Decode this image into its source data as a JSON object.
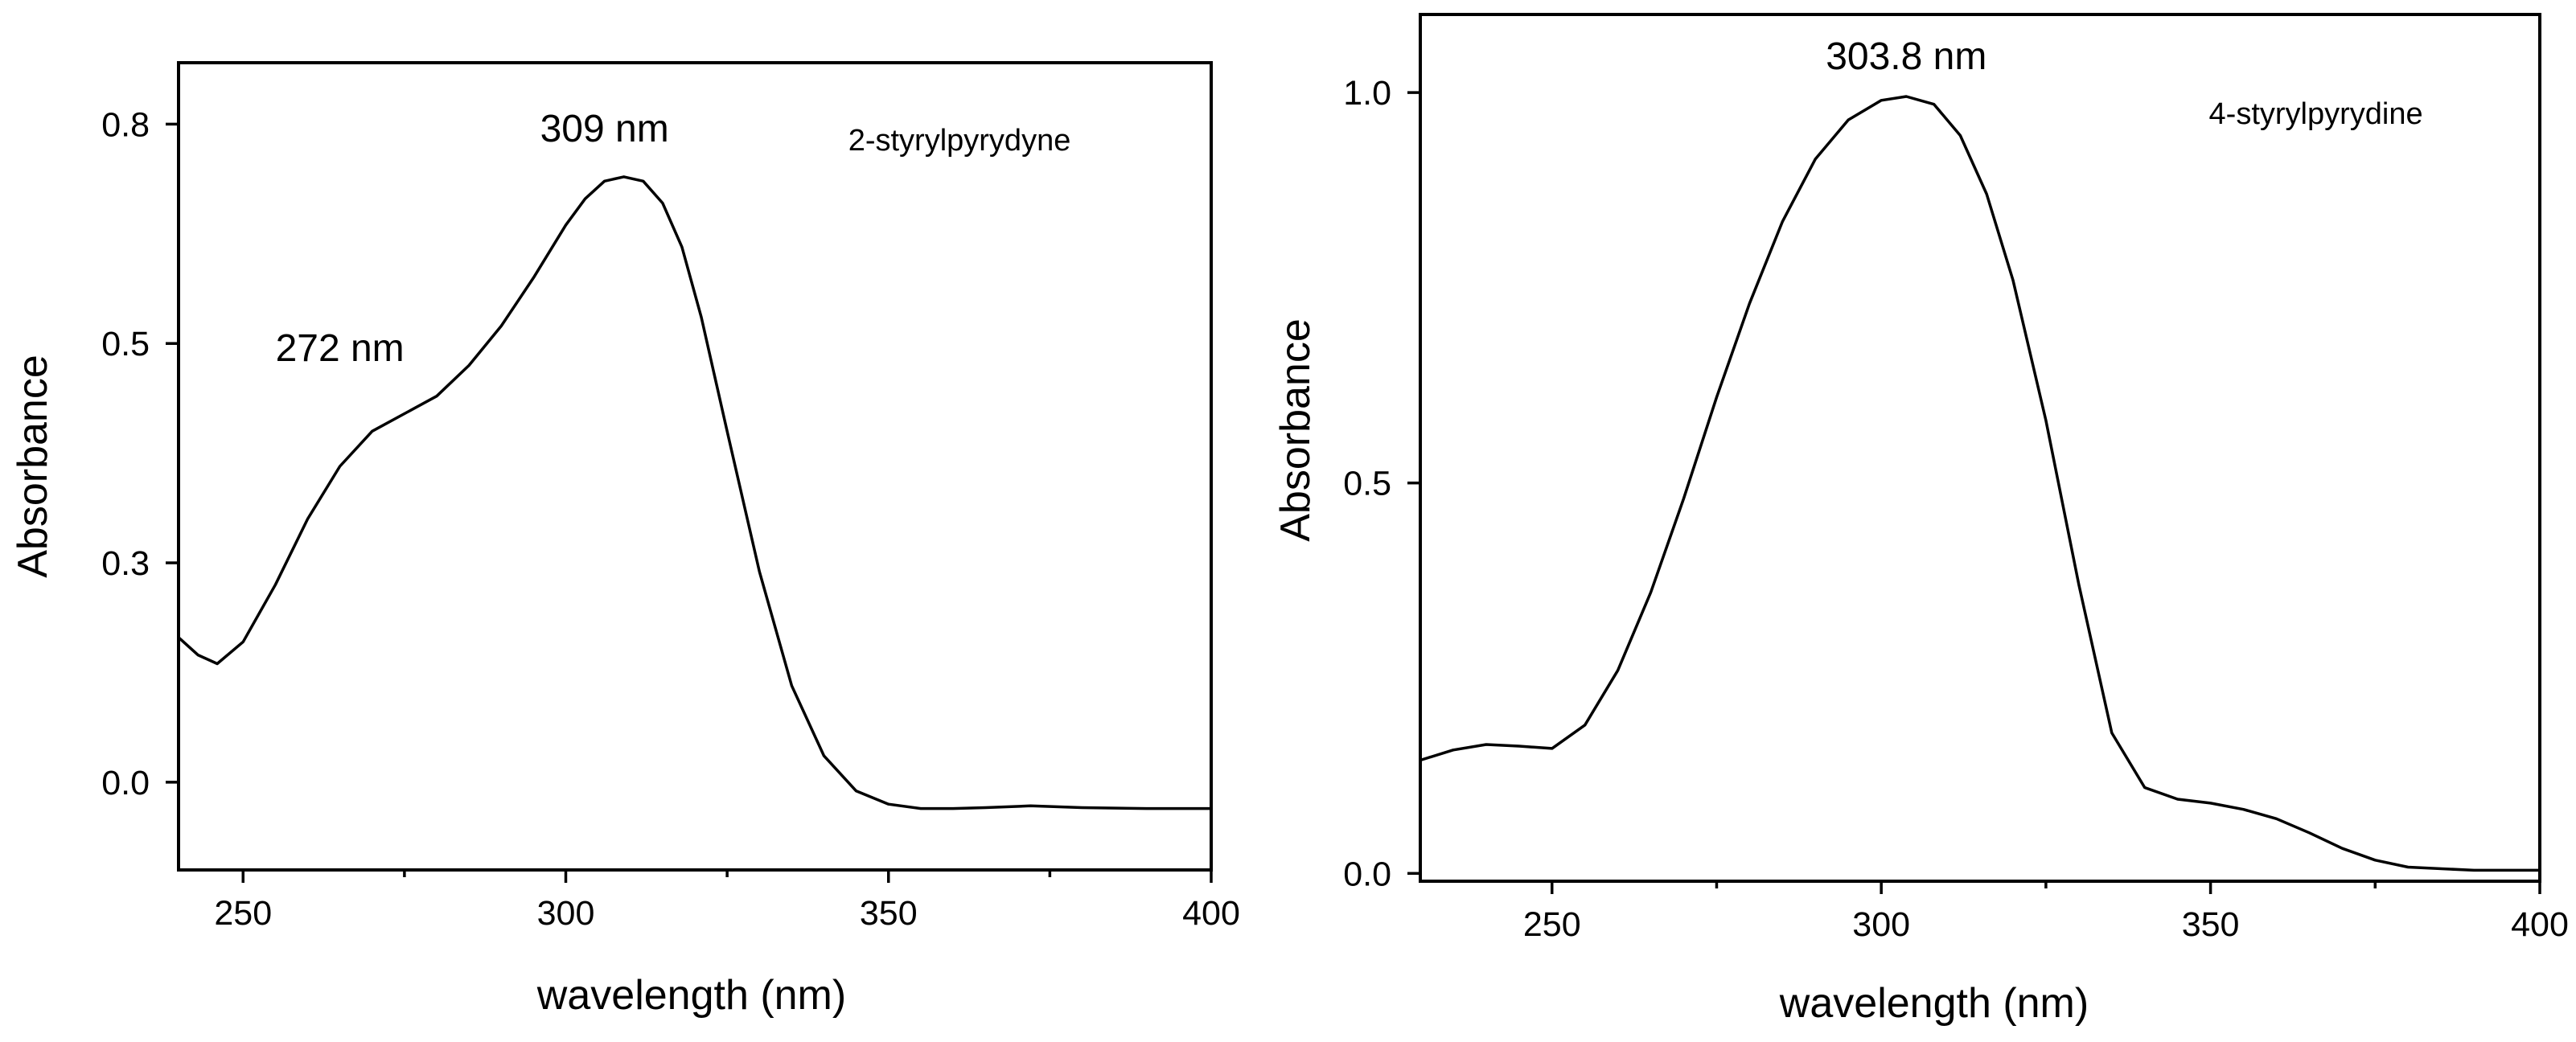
{
  "chart_data": [
    {
      "type": "line",
      "title": "",
      "xlabel": "wavelength (nm)",
      "ylabel": "Absorbance",
      "xlim": [
        240,
        400
      ],
      "ylim": [
        -0.1,
        0.82
      ],
      "x_ticks": [
        250,
        300,
        350,
        400
      ],
      "x_tick_labels": [
        "250",
        "300",
        "350",
        "400"
      ],
      "y_ticks": [
        0.0,
        0.25,
        0.5,
        0.75
      ],
      "y_tick_labels": [
        "0.0",
        "0.3",
        "0.5",
        "0.8"
      ],
      "grid": false,
      "legend": "none",
      "annotations": [
        {
          "text": "309 nm",
          "x": 306,
          "y": 0.73
        },
        {
          "text": "272 nm",
          "x": 265,
          "y": 0.48
        },
        {
          "text": "2-styrylpyrydyne",
          "x": 361,
          "y": 0.72
        }
      ],
      "series": [
        {
          "name": "",
          "x": [
            240,
            243,
            246,
            250,
            255,
            260,
            265,
            270,
            275,
            280,
            285,
            290,
            295,
            300,
            303,
            306,
            309,
            312,
            315,
            318,
            321,
            325,
            330,
            335,
            340,
            345,
            350,
            355,
            360,
            365,
            372,
            380,
            390,
            400
          ],
          "y": [
            0.165,
            0.145,
            0.135,
            0.16,
            0.225,
            0.3,
            0.36,
            0.4,
            0.42,
            0.44,
            0.475,
            0.52,
            0.575,
            0.635,
            0.665,
            0.685,
            0.69,
            0.685,
            0.66,
            0.61,
            0.53,
            0.4,
            0.24,
            0.11,
            0.03,
            -0.01,
            -0.025,
            -0.03,
            -0.03,
            -0.029,
            -0.027,
            -0.029,
            -0.03,
            -0.03
          ]
        }
      ]
    },
    {
      "type": "line",
      "title": "",
      "xlabel": "wavelength (nm)",
      "ylabel": "Absorbance",
      "xlim": [
        230,
        400
      ],
      "ylim": [
        -0.01,
        1.1
      ],
      "x_ticks": [
        250,
        300,
        350,
        400
      ],
      "x_tick_labels": [
        "250",
        "300",
        "350",
        "400"
      ],
      "y_ticks": [
        0.0,
        0.5,
        1.0
      ],
      "y_tick_labels": [
        "0.0",
        "0.5",
        "1.0"
      ],
      "grid": false,
      "legend": "none",
      "annotations": [
        {
          "text": "303.8 nm",
          "x": 303.8,
          "y": 1.03
        },
        {
          "text": "4-styrylpyrydine",
          "x": 366,
          "y": 0.96
        }
      ],
      "series": [
        {
          "name": "",
          "x": [
            230,
            235,
            240,
            245,
            250,
            255,
            260,
            265,
            270,
            275,
            280,
            285,
            290,
            295,
            300,
            303.8,
            308,
            312,
            316,
            320,
            325,
            330,
            335,
            340,
            345,
            350,
            355,
            360,
            365,
            370,
            375,
            380,
            390,
            400
          ],
          "y": [
            0.145,
            0.158,
            0.165,
            0.163,
            0.16,
            0.19,
            0.26,
            0.36,
            0.48,
            0.61,
            0.73,
            0.835,
            0.915,
            0.965,
            0.99,
            0.995,
            0.985,
            0.945,
            0.87,
            0.76,
            0.58,
            0.37,
            0.18,
            0.11,
            0.095,
            0.09,
            0.082,
            0.07,
            0.052,
            0.032,
            0.017,
            0.008,
            0.004,
            0.004
          ]
        }
      ]
    }
  ]
}
